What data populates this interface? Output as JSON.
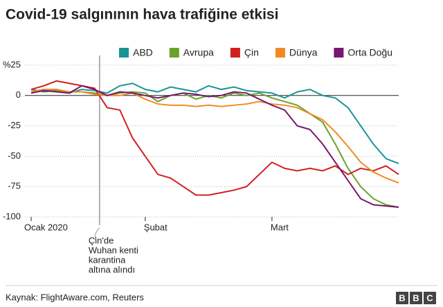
{
  "chart_data": {
    "type": "line",
    "title": "Covid-19 salgınının hava trafiğine etkisi",
    "source": "Kaynak: FlightAware.com, Reuters",
    "logo": [
      "B",
      "B",
      "C"
    ],
    "annotation": [
      "Çin'de",
      "Wuhan kenti",
      "karantina",
      "altına alındı"
    ],
    "categories": [
      "Ocak 2020",
      null,
      null,
      null,
      null,
      null,
      null,
      null,
      null,
      "Şubat",
      null,
      null,
      null,
      null,
      null,
      null,
      null,
      null,
      null,
      "Mart",
      null,
      null,
      null,
      null,
      null,
      null,
      null,
      null,
      null,
      null
    ],
    "ylim": [
      -100,
      25
    ],
    "yticks": [
      {
        "value": 25,
        "label": "%25"
      },
      0,
      -25,
      -50,
      -75,
      -100
    ],
    "grid": true,
    "legend": "top",
    "series": [
      {
        "name": "ABD",
        "color": "#1a9494",
        "values": [
          5,
          3,
          4,
          2,
          5,
          4,
          2,
          8,
          10,
          5,
          3,
          7,
          5,
          3,
          8,
          5,
          7,
          4,
          3,
          2,
          -2,
          3,
          5,
          0,
          -2,
          -10,
          -25,
          -40,
          -52,
          -56
        ]
      },
      {
        "name": "Avrupa",
        "color": "#6aa329",
        "values": [
          3,
          5,
          4,
          3,
          3,
          2,
          0,
          2,
          3,
          2,
          -5,
          0,
          2,
          -3,
          0,
          -2,
          2,
          0,
          2,
          -2,
          -5,
          -8,
          -15,
          -22,
          -40,
          -60,
          -75,
          -85,
          -90,
          -92
        ]
      },
      {
        "name": "Çin",
        "color": "#d11f1f",
        "values": [
          5,
          8,
          12,
          10,
          8,
          6,
          -10,
          -12,
          -35,
          -50,
          -65,
          -68,
          -75,
          -82,
          -82,
          -80,
          -78,
          -75,
          -65,
          -55,
          -60,
          -62,
          -60,
          -62,
          -58,
          -65,
          -60,
          -62,
          -58,
          -65
        ]
      },
      {
        "name": "Dünya",
        "color": "#f28a21",
        "values": [
          3,
          5,
          5,
          3,
          3,
          1,
          0,
          0,
          2,
          -3,
          -7,
          -8,
          -8,
          -9,
          -8,
          -9,
          -8,
          -7,
          -5,
          -7,
          -8,
          -10,
          -15,
          -20,
          -30,
          -42,
          -55,
          -63,
          -68,
          -72
        ]
      },
      {
        "name": "Orta Doğu",
        "color": "#7a1670",
        "values": [
          2,
          4,
          3,
          2,
          8,
          5,
          0,
          3,
          2,
          0,
          -2,
          0,
          2,
          1,
          -1,
          0,
          3,
          2,
          -3,
          -8,
          -12,
          -25,
          -28,
          -40,
          -55,
          -70,
          -85,
          -90,
          -91,
          -92
        ]
      }
    ]
  }
}
